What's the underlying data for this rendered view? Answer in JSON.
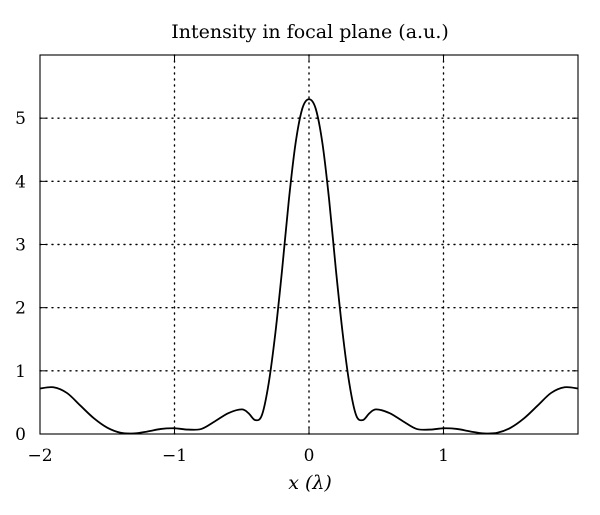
{
  "chart_data": {
    "type": "line",
    "title": "Intensity in focal plane (a.u.)",
    "xlabel": "x (λ)",
    "ylabel": "",
    "xlim": [
      -2,
      2
    ],
    "ylim": [
      0,
      6
    ],
    "x_ticks": [
      -2,
      -1,
      0,
      1
    ],
    "x_tick_labels": [
      "−2",
      "−1",
      "0",
      "1"
    ],
    "y_ticks": [
      0,
      1,
      2,
      3,
      4,
      5
    ],
    "y_tick_labels": [
      "0",
      "1",
      "2",
      "3",
      "4",
      "5"
    ],
    "grid": true,
    "series": [
      {
        "x": [
          -2.0,
          -1.9,
          -1.8,
          -1.7,
          -1.6,
          -1.5,
          -1.4,
          -1.3,
          -1.2,
          -1.1,
          -1.0,
          -0.9,
          -0.8,
          -0.7,
          -0.6,
          -0.5,
          -0.45,
          -0.4,
          -0.35,
          -0.3,
          -0.25,
          -0.2,
          -0.15,
          -0.1,
          -0.05,
          0.0,
          0.05,
          0.1,
          0.15,
          0.2,
          0.25,
          0.3,
          0.35,
          0.4,
          0.45,
          0.5,
          0.6,
          0.7,
          0.8,
          0.9,
          1.0,
          1.1,
          1.2,
          1.3,
          1.4,
          1.5,
          1.6,
          1.7,
          1.8,
          1.9,
          2.0
        ],
        "y": [
          0.72,
          0.74,
          0.65,
          0.45,
          0.25,
          0.1,
          0.02,
          0.01,
          0.04,
          0.08,
          0.09,
          0.07,
          0.08,
          0.2,
          0.33,
          0.39,
          0.33,
          0.22,
          0.3,
          0.8,
          1.6,
          2.6,
          3.7,
          4.6,
          5.15,
          5.3,
          5.15,
          4.6,
          3.7,
          2.6,
          1.6,
          0.8,
          0.3,
          0.22,
          0.33,
          0.39,
          0.33,
          0.2,
          0.08,
          0.07,
          0.09,
          0.08,
          0.04,
          0.01,
          0.02,
          0.1,
          0.25,
          0.45,
          0.65,
          0.74,
          0.72
        ]
      }
    ]
  }
}
